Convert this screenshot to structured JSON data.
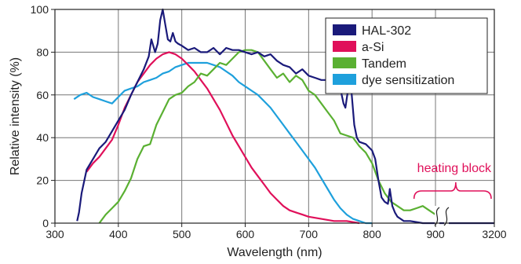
{
  "chart_data": {
    "type": "line",
    "xlabel": "Wavelength (nm)",
    "ylabel": "Relative intensity (%)",
    "xlim": [
      300,
      900
    ],
    "ylim": [
      0,
      100
    ],
    "x_ticks": [
      {
        "value": 300,
        "label": "300"
      },
      {
        "value": 400,
        "label": "400"
      },
      {
        "value": 500,
        "label": "500"
      },
      {
        "value": 600,
        "label": "600"
      },
      {
        "value": 700,
        "label": "700"
      },
      {
        "value": 800,
        "label": "800"
      },
      {
        "value": 900,
        "label": "900"
      },
      {
        "value": 3200,
        "label": "3200"
      }
    ],
    "y_ticks": [
      0,
      20,
      40,
      60,
      80,
      100
    ],
    "grid": true,
    "legend_position": "top-right",
    "axis_break": {
      "after": 900,
      "resume": 3000,
      "end": 3200
    },
    "annotation": {
      "text": "heating block",
      "from": 860,
      "to": 3200,
      "color": "#e0105a"
    },
    "series": [
      {
        "name": "HAL-302",
        "color": "#1a1a7a",
        "points": [
          [
            335,
            1
          ],
          [
            338,
            5
          ],
          [
            342,
            14
          ],
          [
            350,
            25
          ],
          [
            360,
            30
          ],
          [
            370,
            35
          ],
          [
            380,
            38
          ],
          [
            390,
            43
          ],
          [
            400,
            48
          ],
          [
            410,
            53
          ],
          [
            420,
            60
          ],
          [
            430,
            66
          ],
          [
            440,
            72
          ],
          [
            448,
            78
          ],
          [
            452,
            86
          ],
          [
            458,
            80
          ],
          [
            462,
            84
          ],
          [
            466,
            95
          ],
          [
            470,
            100
          ],
          [
            474,
            93
          ],
          [
            478,
            86
          ],
          [
            482,
            85
          ],
          [
            486,
            89
          ],
          [
            490,
            85
          ],
          [
            494,
            84
          ],
          [
            500,
            83
          ],
          [
            510,
            81
          ],
          [
            520,
            82
          ],
          [
            530,
            80
          ],
          [
            540,
            80
          ],
          [
            550,
            82
          ],
          [
            560,
            79
          ],
          [
            570,
            82
          ],
          [
            580,
            81
          ],
          [
            590,
            81
          ],
          [
            600,
            80
          ],
          [
            610,
            79
          ],
          [
            620,
            80
          ],
          [
            630,
            78
          ],
          [
            640,
            79
          ],
          [
            650,
            76
          ],
          [
            660,
            74
          ],
          [
            670,
            73
          ],
          [
            680,
            70
          ],
          [
            690,
            72
          ],
          [
            700,
            69
          ],
          [
            710,
            68
          ],
          [
            720,
            67
          ],
          [
            730,
            67
          ],
          [
            740,
            65
          ],
          [
            750,
            63
          ],
          [
            755,
            56
          ],
          [
            758,
            54
          ],
          [
            762,
            62
          ],
          [
            765,
            72
          ],
          [
            768,
            60
          ],
          [
            772,
            46
          ],
          [
            776,
            40
          ],
          [
            780,
            38
          ],
          [
            790,
            37
          ],
          [
            800,
            34
          ],
          [
            805,
            30
          ],
          [
            810,
            20
          ],
          [
            815,
            12
          ],
          [
            820,
            10
          ],
          [
            825,
            9
          ],
          [
            828,
            16
          ],
          [
            832,
            8
          ],
          [
            836,
            5
          ],
          [
            840,
            3
          ],
          [
            850,
            1
          ],
          [
            860,
            1
          ],
          [
            880,
            0
          ],
          [
            900,
            0
          ],
          [
            3000,
            0
          ],
          [
            3200,
            0
          ]
        ]
      },
      {
        "name": "a-Si",
        "color": "#e0105a",
        "points": [
          [
            350,
            24
          ],
          [
            360,
            28
          ],
          [
            370,
            31
          ],
          [
            380,
            35
          ],
          [
            390,
            39
          ],
          [
            400,
            46
          ],
          [
            410,
            54
          ],
          [
            420,
            60
          ],
          [
            430,
            66
          ],
          [
            440,
            70
          ],
          [
            450,
            74
          ],
          [
            460,
            77
          ],
          [
            470,
            79
          ],
          [
            480,
            80
          ],
          [
            490,
            79
          ],
          [
            500,
            77
          ],
          [
            510,
            74
          ],
          [
            520,
            71
          ],
          [
            530,
            67
          ],
          [
            540,
            63
          ],
          [
            550,
            58
          ],
          [
            560,
            53
          ],
          [
            570,
            47
          ],
          [
            580,
            41
          ],
          [
            590,
            36
          ],
          [
            600,
            31
          ],
          [
            610,
            26
          ],
          [
            620,
            22
          ],
          [
            630,
            18
          ],
          [
            640,
            14
          ],
          [
            650,
            11
          ],
          [
            660,
            8
          ],
          [
            670,
            6
          ],
          [
            680,
            5
          ],
          [
            690,
            4
          ],
          [
            700,
            3
          ],
          [
            720,
            2
          ],
          [
            740,
            1
          ],
          [
            760,
            1
          ],
          [
            780,
            0
          ]
        ]
      },
      {
        "name": "Tandem",
        "color": "#5ab032",
        "points": [
          [
            370,
            0
          ],
          [
            380,
            4
          ],
          [
            390,
            7
          ],
          [
            400,
            10
          ],
          [
            410,
            15
          ],
          [
            420,
            21
          ],
          [
            430,
            30
          ],
          [
            440,
            36
          ],
          [
            450,
            37
          ],
          [
            460,
            46
          ],
          [
            470,
            52
          ],
          [
            480,
            58
          ],
          [
            490,
            60
          ],
          [
            500,
            61
          ],
          [
            510,
            64
          ],
          [
            520,
            66
          ],
          [
            530,
            70
          ],
          [
            540,
            69
          ],
          [
            550,
            72
          ],
          [
            560,
            75
          ],
          [
            570,
            74
          ],
          [
            580,
            77
          ],
          [
            590,
            80
          ],
          [
            600,
            81
          ],
          [
            610,
            81
          ],
          [
            620,
            80
          ],
          [
            630,
            76
          ],
          [
            640,
            72
          ],
          [
            650,
            68
          ],
          [
            660,
            70
          ],
          [
            670,
            66
          ],
          [
            680,
            69
          ],
          [
            690,
            67
          ],
          [
            700,
            62
          ],
          [
            710,
            60
          ],
          [
            720,
            56
          ],
          [
            730,
            52
          ],
          [
            740,
            48
          ],
          [
            750,
            42
          ],
          [
            760,
            41
          ],
          [
            770,
            40
          ],
          [
            780,
            36
          ],
          [
            790,
            33
          ],
          [
            800,
            28
          ],
          [
            810,
            20
          ],
          [
            820,
            14
          ],
          [
            830,
            10
          ],
          [
            840,
            8
          ],
          [
            850,
            6
          ],
          [
            860,
            6
          ],
          [
            870,
            7
          ],
          [
            880,
            8
          ],
          [
            890,
            6
          ],
          [
            900,
            4
          ]
        ]
      },
      {
        "name": "dye sensitization",
        "color": "#1ea0dc",
        "points": [
          [
            330,
            58
          ],
          [
            340,
            60
          ],
          [
            350,
            61
          ],
          [
            360,
            59
          ],
          [
            370,
            58
          ],
          [
            380,
            57
          ],
          [
            390,
            56
          ],
          [
            400,
            59
          ],
          [
            410,
            62
          ],
          [
            420,
            63
          ],
          [
            430,
            64
          ],
          [
            440,
            66
          ],
          [
            450,
            67
          ],
          [
            460,
            68
          ],
          [
            470,
            70
          ],
          [
            480,
            71
          ],
          [
            490,
            73
          ],
          [
            500,
            74
          ],
          [
            510,
            75
          ],
          [
            520,
            75
          ],
          [
            530,
            75
          ],
          [
            540,
            75
          ],
          [
            550,
            74
          ],
          [
            560,
            73
          ],
          [
            570,
            71
          ],
          [
            580,
            69
          ],
          [
            590,
            66
          ],
          [
            600,
            64
          ],
          [
            610,
            62
          ],
          [
            620,
            60
          ],
          [
            630,
            57
          ],
          [
            640,
            54
          ],
          [
            650,
            50
          ],
          [
            660,
            46
          ],
          [
            670,
            42
          ],
          [
            680,
            38
          ],
          [
            690,
            34
          ],
          [
            700,
            30
          ],
          [
            710,
            26
          ],
          [
            720,
            21
          ],
          [
            730,
            16
          ],
          [
            740,
            11
          ],
          [
            750,
            7
          ],
          [
            760,
            4
          ],
          [
            770,
            2
          ],
          [
            780,
            1
          ],
          [
            790,
            0
          ],
          [
            800,
            0
          ]
        ]
      }
    ]
  }
}
